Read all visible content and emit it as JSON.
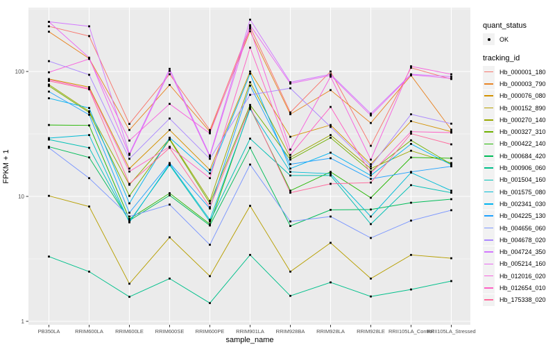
{
  "chart_data": {
    "type": "line",
    "title": "",
    "xlabel": "sample_name",
    "ylabel": "FPKM + 1",
    "y_scale": "log10",
    "ylim": [
      0.95,
      320
    ],
    "y_major_ticks": [
      "1",
      "10",
      "100"
    ],
    "y_major_values": [
      1,
      10,
      100
    ],
    "y_minor_values": [
      3.162,
      31.62,
      316.23
    ],
    "grid": true,
    "legend_position": "right",
    "panel_bg": "#EBEBEB",
    "grid_color": "#FFFFFF",
    "tick_label_color": "#4D4D4D",
    "tick_mark_color": "#333333",
    "marker": {
      "shape": "square",
      "color": "#000000"
    },
    "categories": [
      "PB350LA",
      "RRIM600LA",
      "RRIM600LE",
      "RRIM600SE",
      "RRIM600PE",
      "RRIM901LA",
      "RRIM928BA",
      "RRIM928LA",
      "RRIM928LE",
      "RRII105LA_Control",
      "RRII105LA_Stressed"
    ],
    "series": [
      {
        "name": "Hb_000001_180",
        "color": "#F8766D",
        "values": [
          230,
          192,
          38,
          95,
          34,
          228,
          47,
          100,
          25.4,
          107,
          87
        ]
      },
      {
        "name": "Hb_000003_790",
        "color": "#E88526",
        "values": [
          208,
          127,
          34,
          78,
          33,
          210,
          45.5,
          71,
          38.7,
          93,
          34.2
        ]
      },
      {
        "name": "Hb_000076_080",
        "color": "#D39200",
        "values": [
          87,
          75,
          16.7,
          34,
          16.3,
          100,
          30,
          37.3,
          18.1,
          40,
          33
        ]
      },
      {
        "name": "Hb_000152_890",
        "color": "#B79F00",
        "values": [
          10.1,
          8.3,
          2.0,
          4.7,
          2.3,
          8.4,
          2.5,
          4.25,
          2.2,
          3.4,
          3.2
        ]
      },
      {
        "name": "Hb_000270_140",
        "color": "#99A800",
        "values": [
          78.5,
          48,
          12.4,
          29,
          9.2,
          82,
          20.5,
          31,
          16.7,
          23.2,
          18.5
        ]
      },
      {
        "name": "Hb_000327_310",
        "color": "#6FB000",
        "values": [
          76.5,
          47,
          10.1,
          28.5,
          8.8,
          54,
          19.7,
          29.5,
          15.8,
          28.1,
          18.1
        ]
      },
      {
        "name": "Hb_000422_140",
        "color": "#24B700",
        "values": [
          37.3,
          37,
          6.6,
          10.6,
          6.0,
          51,
          11.1,
          15.7,
          9.75,
          20.5,
          20.2
        ]
      },
      {
        "name": "Hb_000684_420",
        "color": "#00BC59",
        "values": [
          25,
          20.5,
          6.4,
          10.2,
          5.85,
          24.5,
          5.8,
          7.8,
          7.85,
          8.9,
          9.5
        ]
      },
      {
        "name": "Hb_000906_060",
        "color": "#00C08B",
        "values": [
          3.3,
          2.5,
          1.57,
          2.2,
          1.4,
          3.4,
          1.6,
          2.05,
          1.58,
          1.8,
          2.1
        ]
      },
      {
        "name": "Hb_001504_160",
        "color": "#00C0B5",
        "values": [
          28.5,
          24.5,
          6.3,
          17.8,
          6.3,
          29,
          14.7,
          14.7,
          6.0,
          12.3,
          10.7
        ]
      },
      {
        "name": "Hb_001575_080",
        "color": "#00BCD6",
        "values": [
          29.3,
          31,
          6.2,
          18.2,
          6.5,
          50,
          15.7,
          15.2,
          6.9,
          15.5,
          11.1
        ]
      },
      {
        "name": "Hb_002341_030",
        "color": "#00B3F0",
        "values": [
          61,
          51,
          8.8,
          29.5,
          15.3,
          96,
          16.7,
          22.4,
          14.7,
          26.3,
          17.9
        ]
      },
      {
        "name": "Hb_004225_130",
        "color": "#1FA2FF",
        "values": [
          69,
          45,
          7.4,
          18.5,
          8.0,
          77,
          18.1,
          20.2,
          13.8,
          15.7,
          17.4
        ]
      },
      {
        "name": "Hb_004656_060",
        "color": "#7A96FF",
        "values": [
          24.5,
          14,
          6.9,
          8.6,
          4.1,
          18,
          6.3,
          6.9,
          4.65,
          6.4,
          7.75
        ]
      },
      {
        "name": "Hb_004678_020",
        "color": "#AB88FF",
        "values": [
          121,
          94,
          20,
          42,
          20,
          65,
          73.5,
          36,
          17.4,
          45.4,
          38.2
        ]
      },
      {
        "name": "Hb_004724_350",
        "color": "#D277FF",
        "values": [
          250,
          230,
          22,
          105,
          21.3,
          260,
          82,
          95,
          46,
          95,
          91
        ]
      },
      {
        "name": "Hb_005214_160",
        "color": "#EA69F2",
        "values": [
          250,
          129,
          21.5,
          101,
          20.8,
          235,
          80,
          93,
          44.5,
          94,
          88
        ]
      },
      {
        "name": "Hb_012016_020",
        "color": "#F762DE",
        "values": [
          98.5,
          126,
          28,
          55,
          32,
          220,
          23.7,
          91,
          19.7,
          110,
          95
        ]
      },
      {
        "name": "Hb_012654_010",
        "color": "#FF61C5",
        "values": [
          86,
          73,
          15.8,
          25,
          14,
          155,
          21.5,
          52,
          15.3,
          33,
          32.4
        ]
      },
      {
        "name": "Hb_175338_020",
        "color": "#FF699C",
        "values": [
          84,
          72,
          12.6,
          24.5,
          8.2,
          52,
          10.7,
          12.6,
          12.9,
          31.8,
          26.1
        ]
      }
    ]
  },
  "legend": {
    "quant_status": {
      "title": "quant_status",
      "items": [
        {
          "label": "OK"
        }
      ]
    },
    "tracking_id": {
      "title": "tracking_id"
    }
  }
}
